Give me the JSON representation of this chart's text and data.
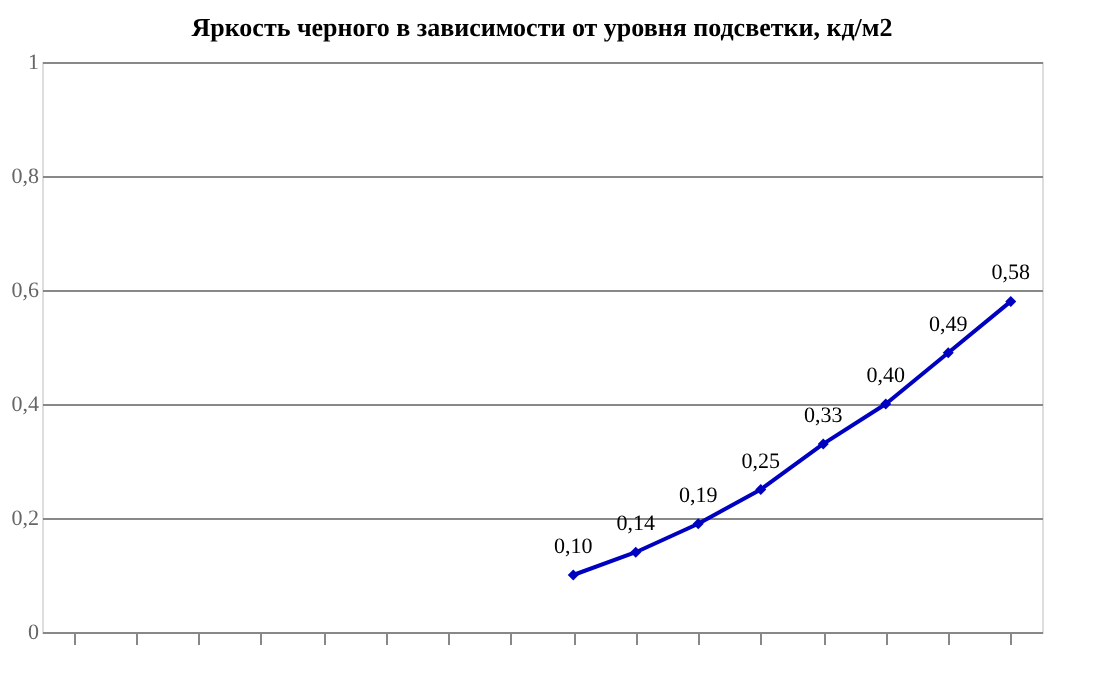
{
  "chart_data": {
    "type": "line",
    "title": "Яркость черного в зависимости от уровня подсветки, кд/м2",
    "categories": [
      null,
      null,
      null,
      null,
      null,
      null,
      null,
      null,
      null,
      null,
      null,
      null,
      null,
      null,
      null,
      null
    ],
    "series": [
      {
        "color": "#0000c0",
        "values": [
          null,
          null,
          null,
          null,
          null,
          null,
          null,
          null,
          0.1,
          0.14,
          0.19,
          0.25,
          0.33,
          0.4,
          0.49,
          0.58
        ],
        "value_labels": [
          null,
          null,
          null,
          null,
          null,
          null,
          null,
          null,
          "0,10",
          "0,14",
          "0,19",
          "0,25",
          "0,33",
          "0,40",
          "0,49",
          "0,58"
        ]
      }
    ],
    "ylim": [
      0,
      1
    ],
    "yticks": [
      0,
      {
        "value": 0.2,
        "label": "0,2"
      },
      {
        "value": 0.4,
        "label": "0,4"
      },
      {
        "value": 0.6,
        "label": "0,6"
      },
      {
        "value": 0.8,
        "label": "0,8"
      },
      1
    ],
    "grid": "y",
    "marker": "diamond"
  }
}
